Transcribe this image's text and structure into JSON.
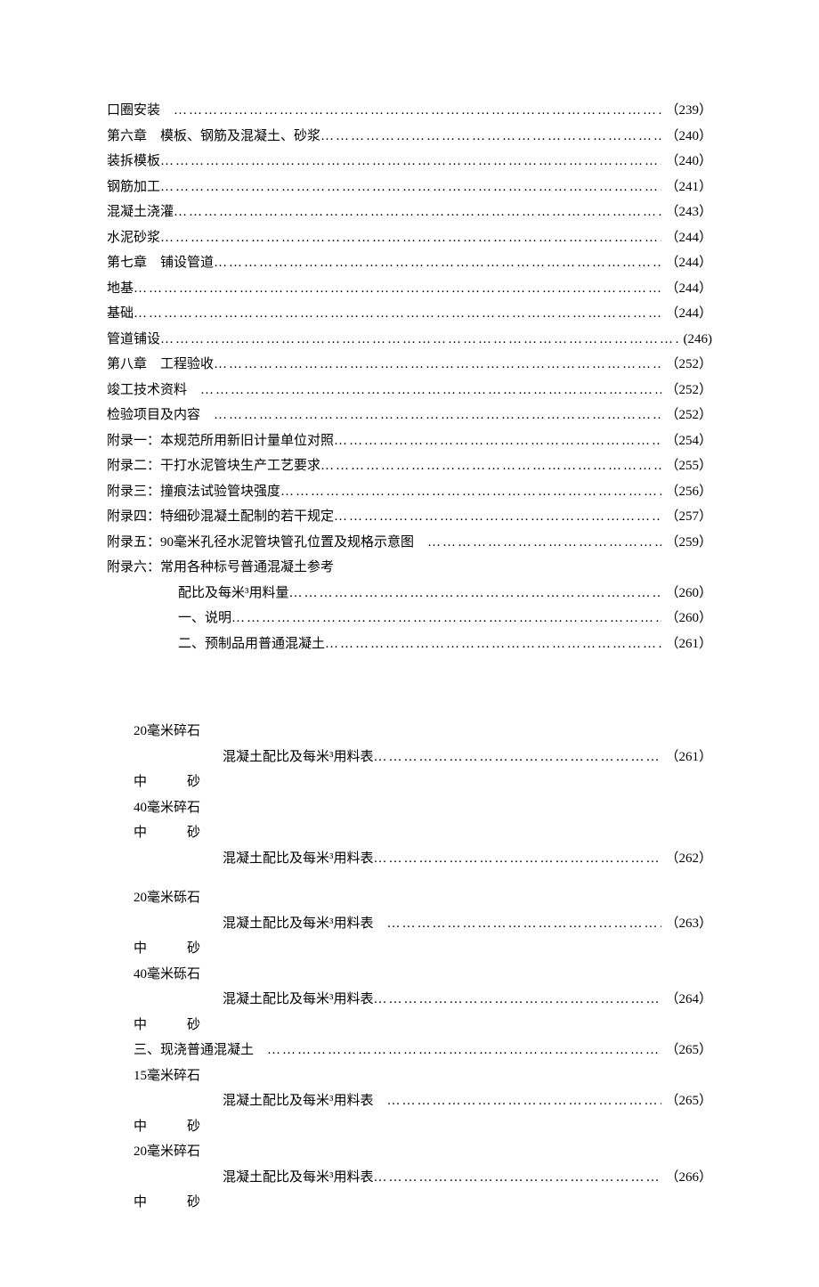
{
  "text_color": "#000000",
  "background_color": "#ffffff",
  "font_family": "SimSun",
  "base_fontsize_pt": 11,
  "toc_upper": [
    {
      "label": "口圈安装",
      "page": "（239）",
      "gap": true
    },
    {
      "label": "第六章　模板、钢筋及混凝土、砂浆",
      "page": "（240）"
    },
    {
      "label": "装拆模板",
      "page": "（240）"
    },
    {
      "label": "钢筋加工",
      "page": "（241）"
    },
    {
      "label": "混凝土浇灌",
      "page": "（243）"
    },
    {
      "label": "水泥砂浆",
      "page": "（244）"
    },
    {
      "label": "第七章　铺设管道",
      "page": "（244）"
    },
    {
      "label": "地基",
      "page": "（244）"
    },
    {
      "label": "基础",
      "page": "（244）"
    },
    {
      "label": "管道铺设",
      "page": "(246)"
    },
    {
      "label": "第八章　工程验收",
      "page": "（252）"
    },
    {
      "label": "竣工技术资料",
      "page": "（252）",
      "gap": true
    },
    {
      "label": "检验项目及内容",
      "page": "（252）",
      "gap": true
    },
    {
      "label": "附录一：本规范所用新旧计量单位对照",
      "page": "（254）"
    },
    {
      "label": "附录二：干打水泥管块生产工艺要求",
      "page": "（255）"
    },
    {
      "label": "附录三：撞痕法试验管块强度",
      "page": "（256）"
    },
    {
      "label": "附录四：特细砂混凝土配制的若干规定",
      "page": "（257）"
    },
    {
      "label": "附录五：90毫米孔径水泥管块管孔位置及规格示意图",
      "page": "（259）",
      "gap": true
    }
  ],
  "appendix6_head": "附录六：常用各种标号普通混凝土参考",
  "appendix6_sub": [
    {
      "label": "配比及每米³用料量",
      "page": "（260）",
      "indent": "indent-1"
    },
    {
      "label": "一、说明",
      "page": "（260）",
      "indent": "indent-1"
    },
    {
      "label": "二、预制品用普通混凝土",
      "page": "（261）",
      "indent": "indent-1"
    }
  ],
  "blocks": [
    {
      "top": "20毫米碎石",
      "mid": {
        "label": "混凝土配比及每米³用料表",
        "page": "（261）"
      },
      "cs_left": "中",
      "cs_right": "砂"
    },
    {
      "top": "40毫米碎石",
      "pre_cs": {
        "left": "中",
        "right": "砂"
      },
      "mid": {
        "label": "混凝土配比及每米³用料表",
        "page": "（262）"
      }
    }
  ],
  "blocks2": [
    {
      "top": "20毫米砾石",
      "mid": {
        "label": "混凝土配比及每米³用料表",
        "page": "（263）",
        "gap": true
      },
      "cs_left": "中",
      "cs_right": "砂"
    },
    {
      "top": "40毫米砾石",
      "mid": {
        "label": "混凝土配比及每米³用料表",
        "page": "（264）"
      },
      "cs_left": "中",
      "cs_right": "砂"
    }
  ],
  "cast_in_place": {
    "label": "三、现浇普通混凝土",
    "page": "（265）",
    "gap": true
  },
  "blocks3": [
    {
      "top": "15毫米碎石",
      "mid": {
        "label": "混凝土配比及每米³用料表",
        "page": "（265）",
        "gap": true
      },
      "cs_left": "中",
      "cs_right": "砂"
    },
    {
      "top": "20毫米碎石",
      "mid": {
        "label": "混凝土配比及每米³用料表",
        "page": "（266）"
      },
      "cs_left": "中",
      "cs_right": "砂"
    }
  ]
}
